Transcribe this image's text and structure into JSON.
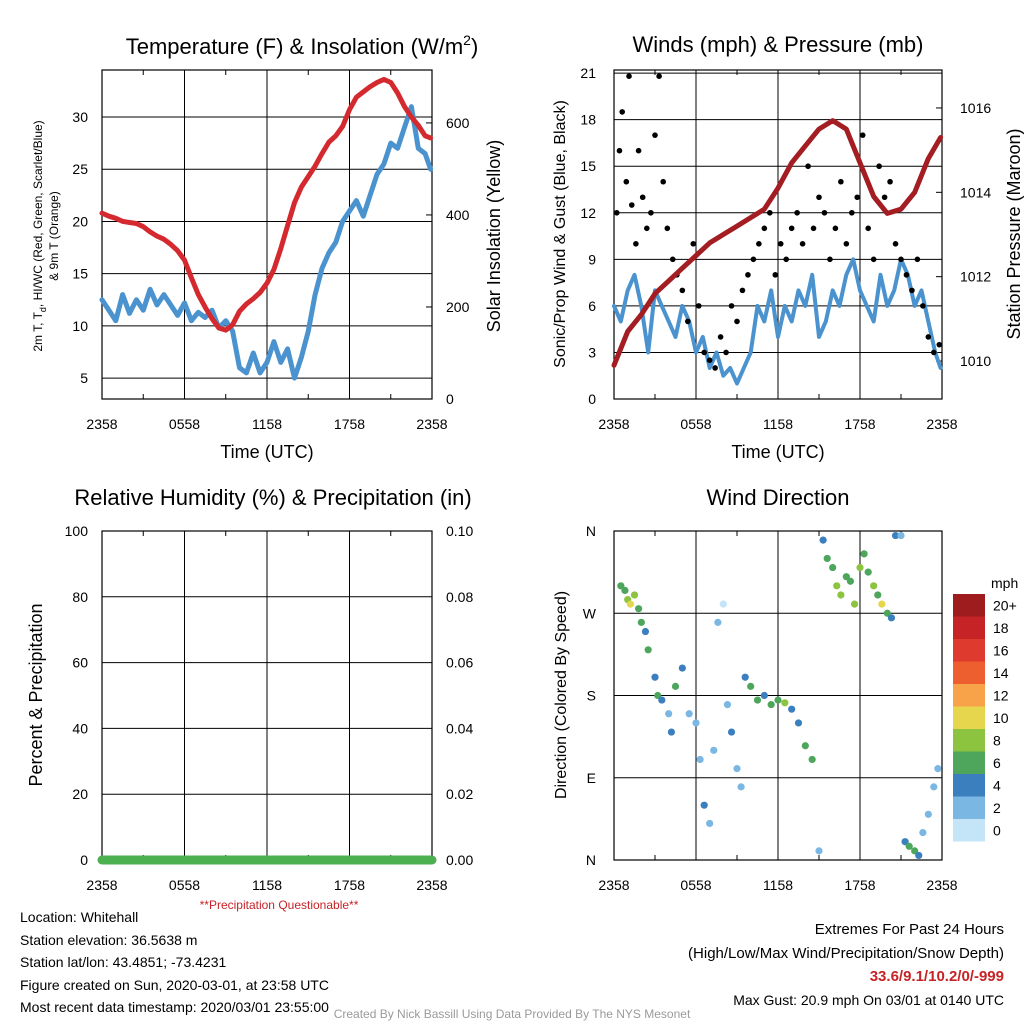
{
  "chart_data": [
    {
      "id": "temperature",
      "type": "line",
      "title": "Temperature (F) & Insolation (W/m",
      "title_sup": "2",
      "title_end": ")",
      "xlabel": "Time (UTC)",
      "ylabel_lines": [
        "2m T, T",
        "d",
        ", HI/WC (Red, Green, Scarlet/Blue)",
        "& 9m T (Orange)"
      ],
      "ylabel2": "Solar Insolation (Yellow)",
      "x_ticks": [
        "2358",
        "0558",
        "1158",
        "1758",
        "2358"
      ],
      "y_ticks": [
        5,
        10,
        15,
        20,
        25,
        30
      ],
      "y2_ticks": [
        0,
        200,
        400,
        600
      ],
      "ylim": [
        3,
        34.5
      ],
      "y2lim": [
        0,
        715
      ],
      "xlim_hours": [
        0,
        24
      ],
      "series": [
        {
          "color": "#d42a2f",
          "x": [
            0,
            0.5,
            1,
            1.5,
            2,
            2.5,
            3,
            3.5,
            4,
            4.5,
            5,
            5.5,
            6,
            6.5,
            7,
            7.5,
            8,
            8.5,
            9,
            9.5,
            10,
            10.5,
            11,
            11.5,
            12,
            12.5,
            13,
            13.5,
            14,
            14.5,
            15,
            15.5,
            16,
            16.5,
            17,
            17.5,
            18,
            18.5,
            19,
            19.5,
            20,
            20.5,
            21,
            21.5,
            22,
            22.5,
            23,
            23.5,
            23.9
          ],
          "values": [
            20.8,
            20.5,
            20.3,
            20,
            19.9,
            19.8,
            19.5,
            19,
            18.6,
            18.3,
            17.8,
            17.2,
            16.3,
            14.6,
            13,
            11.8,
            10.7,
            9.8,
            9.6,
            10.1,
            11.4,
            12.1,
            12.6,
            13.2,
            14.1,
            15.4,
            17.4,
            19.6,
            21.8,
            23.3,
            24.3,
            25.3,
            26.5,
            27.6,
            28.2,
            29.1,
            30.7,
            31.9,
            32.4,
            32.9,
            33.3,
            33.6,
            33.3,
            32.3,
            31,
            30,
            29.2,
            28.2,
            28
          ]
        },
        {
          "color": "#4a93cf",
          "x": [
            0,
            0.5,
            1,
            1.5,
            2,
            2.5,
            3,
            3.5,
            4,
            4.5,
            5,
            5.5,
            6,
            6.5,
            7,
            7.5,
            8,
            8.5,
            9,
            9.5,
            10,
            10.5,
            11,
            11.5,
            12,
            12.5,
            13,
            13.5,
            14,
            14.5,
            15,
            15.5,
            16,
            16.5,
            17,
            17.5,
            18,
            18.5,
            19,
            19.5,
            20,
            20.5,
            21,
            21.5,
            22,
            22.5,
            23,
            23.5,
            23.9
          ],
          "values": [
            12.5,
            11.5,
            10.5,
            13,
            11.2,
            12.5,
            11.5,
            13.5,
            12,
            13,
            12,
            11,
            12.2,
            10.5,
            11.3,
            10.8,
            11.5,
            9.8,
            10.5,
            9.5,
            6,
            5.5,
            7.4,
            5.5,
            6.5,
            8.5,
            6.5,
            7.8,
            5,
            7,
            9.5,
            13,
            15.5,
            17,
            18,
            20,
            21,
            22,
            20.5,
            22.5,
            24.5,
            25.5,
            27.5,
            27,
            29,
            31,
            27,
            26.5,
            25
          ]
        }
      ]
    },
    {
      "id": "winds",
      "type": "scatter",
      "title": "Winds (mph) & Pressure (mb)",
      "xlabel": "Time (UTC)",
      "ylabel": "Sonic/Prop Wind & Gust (Blue, Black)",
      "ylabel2": "Station Pressure (Maroon)",
      "x_ticks": [
        "2358",
        "0558",
        "1158",
        "1758",
        "2358"
      ],
      "y_ticks": [
        0,
        3,
        6,
        9,
        12,
        15,
        18,
        21
      ],
      "y2_ticks": [
        1010,
        1012,
        1014,
        1016
      ],
      "ylim": [
        0,
        21.2
      ],
      "y2lim": [
        1009.1,
        1016.9
      ],
      "xlim_hours": [
        0,
        24
      ],
      "series": [
        {
          "color": "#4a93cf",
          "x": [
            0,
            0.5,
            1,
            1.5,
            2,
            2.5,
            3,
            3.5,
            4,
            4.5,
            5,
            5.5,
            6,
            6.5,
            7,
            7.5,
            8,
            8.5,
            9,
            9.5,
            10,
            10.5,
            11,
            11.5,
            12,
            12.5,
            13,
            13.5,
            14,
            14.5,
            15,
            15.5,
            16,
            16.5,
            17,
            17.5,
            18,
            18.5,
            19,
            19.5,
            20,
            20.5,
            21,
            21.5,
            22,
            22.5,
            23,
            23.5,
            23.9
          ],
          "values": [
            6,
            5,
            7,
            8,
            6,
            3,
            7,
            6,
            5,
            4,
            6,
            5,
            3,
            4,
            2,
            3,
            1.5,
            2,
            1,
            2,
            3,
            6,
            5,
            7,
            4,
            6,
            5,
            7,
            6,
            8,
            4,
            5,
            7,
            6,
            8,
            9,
            7,
            6,
            5,
            8,
            6,
            7,
            9,
            8,
            6,
            7,
            5,
            3,
            2
          ]
        },
        {
          "color": "#000000",
          "x": [
            0.2,
            0.4,
            0.6,
            0.9,
            1.1,
            1.3,
            1.6,
            1.8,
            2.1,
            2.4,
            2.7,
            3,
            3.3,
            3.6,
            3.9,
            4.3,
            4.6,
            5,
            5.4,
            5.8,
            6.2,
            6.6,
            7,
            7.4,
            7.8,
            8.2,
            8.6,
            9,
            9.4,
            9.8,
            10.2,
            10.6,
            11,
            11.4,
            11.8,
            12.2,
            12.6,
            13,
            13.4,
            13.8,
            14.2,
            14.6,
            15,
            15.4,
            15.8,
            16.2,
            16.6,
            17,
            17.4,
            17.8,
            18.2,
            18.6,
            19,
            19.4,
            19.8,
            20.2,
            20.6,
            21,
            21.4,
            21.8,
            22.2,
            22.6,
            23,
            23.4,
            23.8
          ],
          "values": [
            12,
            16,
            18.5,
            14,
            20.8,
            12.5,
            10,
            16,
            13,
            11,
            12,
            17,
            20.8,
            14,
            11,
            9,
            8,
            7,
            5,
            10,
            6,
            3,
            2.5,
            2,
            4,
            3,
            6,
            5,
            7,
            8,
            9,
            10,
            11,
            12,
            8,
            10,
            9,
            11,
            12,
            10,
            15,
            11,
            13,
            12,
            9,
            11,
            14,
            10,
            12,
            13,
            17,
            11,
            9,
            15,
            13,
            14,
            10,
            9,
            8,
            7,
            9,
            6,
            4,
            3,
            3.5
          ]
        },
        {
          "color": "#a31d22",
          "x": [
            0,
            1,
            2,
            3,
            4,
            5,
            6,
            7,
            8,
            9,
            10,
            11,
            12,
            13,
            14,
            15,
            16,
            17,
            18,
            19,
            20,
            21,
            22,
            23,
            23.9
          ],
          "values": [
            1009.9,
            1010.7,
            1011.1,
            1011.6,
            1011.9,
            1012.2,
            1012.5,
            1012.8,
            1013,
            1013.2,
            1013.4,
            1013.6,
            1014.1,
            1014.7,
            1015.1,
            1015.5,
            1015.7,
            1015.5,
            1014.7,
            1013.9,
            1013.5,
            1013.6,
            1014,
            1014.8,
            1015.3
          ]
        }
      ]
    },
    {
      "id": "humidity",
      "type": "line",
      "title": "Relative Humidity (%) & Precipitation (in)",
      "ylabel": "Percent & Precipitation",
      "x_ticks": [
        "2358",
        "0558",
        "1158",
        "1758",
        "2358"
      ],
      "y_ticks": [
        0,
        20,
        40,
        60,
        80,
        100
      ],
      "y2_ticks": [
        "0.00",
        "0.02",
        "0.04",
        "0.06",
        "0.08",
        "0.10"
      ],
      "ylim": [
        0,
        100
      ],
      "xlim_hours": [
        0,
        24
      ],
      "series": [
        {
          "color": "#4caf50",
          "x": [
            0,
            24
          ],
          "values": [
            0,
            0
          ]
        }
      ],
      "annotation": "**Precipitation Questionable**"
    },
    {
      "id": "wind_direction",
      "type": "scatter",
      "title": "Wind Direction",
      "ylabel": "Direction (Colored By Speed)",
      "x_ticks": [
        "2358",
        "0558",
        "1158",
        "1758",
        "2358"
      ],
      "y_ticks": [
        "N",
        "E",
        "S",
        "W",
        "N"
      ],
      "ylim_deg": [
        0,
        360
      ],
      "xlim_hours": [
        0,
        24
      ],
      "legend": {
        "unit": "mph",
        "labels": [
          "20+",
          "18",
          "16",
          "14",
          "12",
          "10",
          "8",
          "6",
          "4",
          "2",
          "0"
        ],
        "colors": [
          "#9e1b1e",
          "#c62327",
          "#de3a2d",
          "#ee5f2f",
          "#f8a34a",
          "#e5d64e",
          "#8cc440",
          "#4da65c",
          "#3c7fbf",
          "#7bb7e3",
          "#c4e4f7"
        ]
      },
      "points": [
        [
          0.5,
          300,
          5
        ],
        [
          0.8,
          295,
          6
        ],
        [
          1.0,
          285,
          8
        ],
        [
          1.2,
          280,
          10
        ],
        [
          1.5,
          290,
          7
        ],
        [
          1.8,
          275,
          6
        ],
        [
          2.0,
          260,
          5
        ],
        [
          2.3,
          250,
          4
        ],
        [
          2.5,
          230,
          5
        ],
        [
          3.0,
          200,
          4
        ],
        [
          3.2,
          180,
          6
        ],
        [
          3.5,
          175,
          3
        ],
        [
          4.0,
          160,
          2
        ],
        [
          4.2,
          140,
          4
        ],
        [
          4.5,
          190,
          5
        ],
        [
          5.0,
          210,
          3
        ],
        [
          5.5,
          160,
          2
        ],
        [
          6.0,
          150,
          1
        ],
        [
          6.3,
          110,
          2
        ],
        [
          6.6,
          60,
          3
        ],
        [
          7.0,
          40,
          1
        ],
        [
          7.3,
          120,
          2
        ],
        [
          7.6,
          260,
          1
        ],
        [
          8.0,
          280,
          0
        ],
        [
          8.3,
          170,
          2
        ],
        [
          8.6,
          140,
          3
        ],
        [
          9.0,
          100,
          1
        ],
        [
          9.3,
          80,
          2
        ],
        [
          9.6,
          200,
          4
        ],
        [
          10.0,
          190,
          6
        ],
        [
          10.5,
          175,
          5
        ],
        [
          11.0,
          180,
          4
        ],
        [
          11.5,
          170,
          6
        ],
        [
          12.0,
          175,
          5
        ],
        [
          12.5,
          172,
          7
        ],
        [
          13.0,
          165,
          4
        ],
        [
          13.5,
          150,
          3
        ],
        [
          14.0,
          125,
          6
        ],
        [
          14.5,
          110,
          5
        ],
        [
          15.0,
          10,
          2
        ],
        [
          15.3,
          350,
          4
        ],
        [
          15.6,
          330,
          5
        ],
        [
          16.0,
          320,
          6
        ],
        [
          16.3,
          300,
          7
        ],
        [
          16.6,
          290,
          8
        ],
        [
          17.0,
          310,
          6
        ],
        [
          17.3,
          305,
          5
        ],
        [
          17.6,
          280,
          8
        ],
        [
          18.0,
          320,
          7
        ],
        [
          18.3,
          335,
          6
        ],
        [
          18.6,
          315,
          5
        ],
        [
          19.0,
          300,
          7
        ],
        [
          19.3,
          290,
          6
        ],
        [
          19.6,
          280,
          9
        ],
        [
          20.0,
          270,
          5
        ],
        [
          20.3,
          265,
          4
        ],
        [
          20.6,
          355,
          3
        ],
        [
          21.0,
          355,
          2
        ],
        [
          21.3,
          20,
          4
        ],
        [
          21.6,
          15,
          6
        ],
        [
          22.0,
          10,
          5
        ],
        [
          22.3,
          5,
          3
        ],
        [
          22.6,
          30,
          2
        ],
        [
          23.0,
          50,
          1
        ],
        [
          23.4,
          80,
          2
        ],
        [
          23.7,
          100,
          1
        ]
      ]
    }
  ],
  "info": {
    "location": "Location: Whitehall",
    "elevation": "Station elevation: 36.5638 m",
    "latlon": "Station lat/lon: 43.4851; -73.4231",
    "created": "Figure created on Sun, 2020-03-01, at 23:58 UTC",
    "recent": "Most recent data timestamp: 2020/03/01 23:55:00"
  },
  "extremes": {
    "heading": "Extremes For Past 24 Hours",
    "subheading": "(High/Low/Max Wind/Precipitation/Snow Depth)",
    "values": "33.6/9.1/10.2/0/-999",
    "gust": "Max Gust: 20.9 mph On 03/01 at 0140 UTC"
  },
  "credit": "Created By Nick Bassill Using Data Provided By The NYS Mesonet"
}
